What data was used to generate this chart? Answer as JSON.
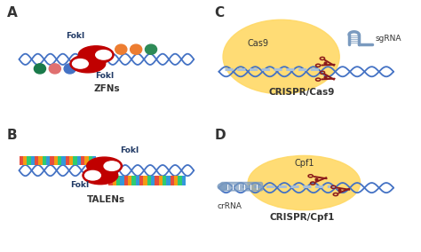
{
  "background_color": "#ffffff",
  "dna_color": "#4472c4",
  "fokI_color": "#c00000",
  "cas9_color": "#ffd966",
  "scissor_color": "#8b1a1a",
  "guide_color": "#a8bfd8",
  "label_fokI_color": "#1f3864",
  "panel_label_color": "#333333",
  "zf_colors_bottom": [
    "#1a7a4a",
    "#e07070",
    "#4472c4"
  ],
  "zf_colors_top": [
    "#ed7d31",
    "#ed7d31",
    "#2e8b57"
  ],
  "tal_colors": [
    "#e74c3c",
    "#f39c12",
    "#2ecc71",
    "#3498db"
  ],
  "title_A": "ZFNs",
  "title_B": "TALENs",
  "title_C": "CRISPR/Cas9",
  "title_D": "CRISPR/Cpf1",
  "sgRNA_color": "#7a9abf",
  "crRNA_color": "#7a9abf"
}
